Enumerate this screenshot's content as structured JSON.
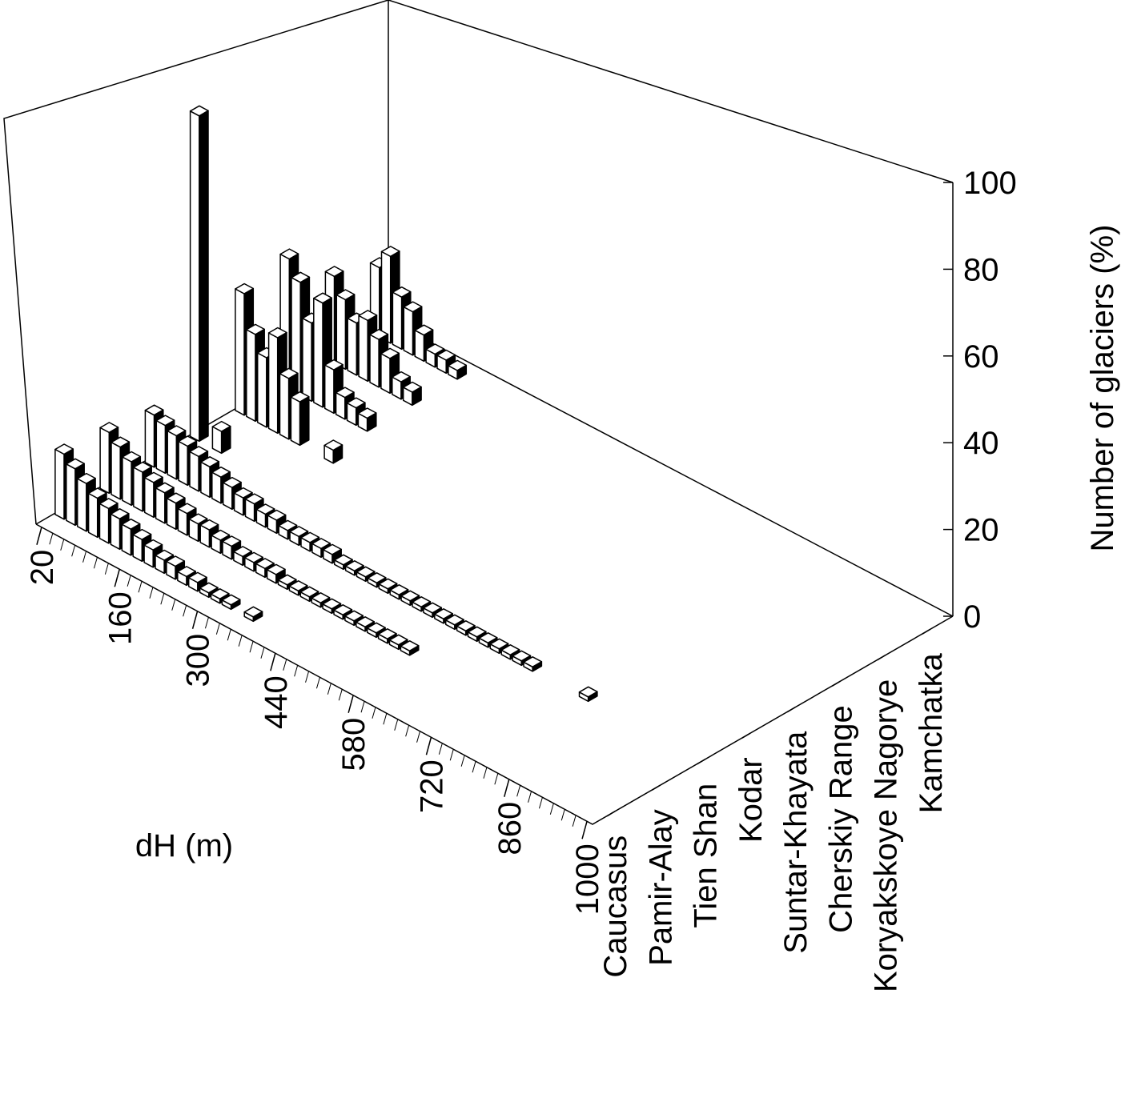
{
  "chart_data": {
    "type": "bar3d",
    "xlabel": "dH (m)",
    "zlabel": "Number of glaciers (%)",
    "x": [
      20,
      40,
      60,
      80,
      100,
      120,
      140,
      160,
      180,
      200,
      220,
      240,
      260,
      280,
      300,
      320,
      340,
      360,
      380,
      400,
      420,
      440,
      460,
      480,
      500,
      520,
      540,
      560,
      580,
      600,
      620,
      640,
      660,
      680,
      700,
      720,
      740,
      760,
      780,
      800,
      820,
      840,
      860,
      880,
      900,
      920,
      940,
      960,
      980,
      1000
    ],
    "xlim": [
      10,
      1010
    ],
    "xticks": [
      20,
      160,
      300,
      440,
      580,
      720,
      860,
      1000
    ],
    "zlim": [
      0,
      100
    ],
    "zticks": [
      0,
      20,
      40,
      60,
      80,
      100
    ],
    "color": "#ffffff",
    "side_color": "#000000",
    "series": [
      {
        "name": "Caucasus",
        "values": [
          15,
          13,
          11,
          9,
          8,
          7,
          6,
          5,
          4,
          3,
          3,
          2,
          2,
          1,
          1,
          1,
          0,
          1,
          0,
          0,
          0,
          0,
          0,
          0,
          0,
          0,
          0,
          0,
          0,
          0,
          0,
          0,
          0,
          0,
          0,
          0,
          0,
          0,
          0,
          0,
          0,
          0,
          0,
          0,
          0,
          0,
          0,
          0,
          0,
          0
        ]
      },
      {
        "name": "Pamir-Alay",
        "values": [
          14,
          12,
          10,
          9,
          8,
          7,
          6,
          5,
          4,
          4,
          3,
          3,
          2,
          2,
          2,
          2,
          1,
          1,
          1,
          1,
          1,
          1,
          1,
          1,
          1,
          1,
          1,
          1,
          0,
          0,
          0,
          0,
          0,
          0,
          0,
          0,
          0,
          0,
          0,
          0,
          0,
          0,
          0,
          0,
          0,
          0,
          0,
          0,
          0,
          0
        ]
      },
      {
        "name": "Tien Shan",
        "values": [
          12,
          11,
          10,
          9,
          8,
          7,
          6,
          5,
          4,
          4,
          3,
          3,
          2,
          2,
          2,
          2,
          2,
          1,
          1,
          1,
          1,
          1,
          1,
          1,
          1,
          1,
          1,
          1,
          1,
          1,
          1,
          1,
          1,
          1,
          1,
          0,
          0,
          0,
          0,
          1,
          0,
          0,
          0,
          0,
          0,
          0,
          0,
          0,
          0,
          0
        ]
      },
      {
        "name": "Kodar",
        "values": [
          75,
          0,
          5,
          0,
          0,
          0,
          0,
          0,
          0,
          0,
          0,
          0,
          0,
          0,
          0,
          0,
          0,
          0,
          0,
          0,
          0,
          0,
          0,
          0,
          0,
          0,
          0,
          0,
          0,
          0,
          0,
          0,
          0,
          0,
          0,
          0,
          0,
          0,
          0,
          0,
          0,
          0,
          0,
          0,
          0,
          0,
          0,
          0,
          0,
          0
        ]
      },
      {
        "name": "Suntar-Khayata",
        "values": [
          28,
          20,
          16,
          22,
          14,
          10,
          0,
          0,
          3,
          0,
          0,
          0,
          0,
          0,
          0,
          0,
          0,
          0,
          0,
          0,
          0,
          0,
          0,
          0,
          0,
          0,
          0,
          0,
          0,
          0,
          0,
          0,
          0,
          0,
          0,
          0,
          0,
          0,
          0,
          0,
          0,
          0,
          0,
          0,
          0,
          0,
          0,
          0,
          0,
          0
        ]
      },
      {
        "name": "Cherskiy Range",
        "values": [
          30,
          26,
          18,
          24,
          10,
          5,
          4,
          3,
          0,
          0,
          0,
          0,
          0,
          0,
          0,
          0,
          0,
          0,
          0,
          0,
          0,
          0,
          0,
          0,
          0,
          0,
          0,
          0,
          0,
          0,
          0,
          0,
          0,
          0,
          0,
          0,
          0,
          0,
          0,
          0,
          0,
          0,
          0,
          0,
          0,
          0,
          0,
          0,
          0,
          0
        ]
      },
      {
        "name": "Koryakskoye Nagorye",
        "values": [
          20,
          16,
          12,
          14,
          11,
          8,
          4,
          3,
          0,
          0,
          0,
          0,
          0,
          0,
          0,
          0,
          0,
          0,
          0,
          0,
          0,
          0,
          0,
          0,
          0,
          0,
          0,
          0,
          0,
          0,
          0,
          0,
          0,
          0,
          0,
          0,
          0,
          0,
          0,
          0,
          0,
          0,
          0,
          0,
          0,
          0,
          0,
          0,
          0,
          0
        ]
      },
      {
        "name": "Kamchatka",
        "values": [
          16,
          20,
          12,
          10,
          6,
          3,
          3,
          2,
          0,
          0,
          0,
          0,
          0,
          0,
          0,
          0,
          0,
          0,
          0,
          0,
          0,
          0,
          0,
          0,
          0,
          0,
          0,
          0,
          0,
          0,
          0,
          0,
          0,
          0,
          0,
          0,
          0,
          0,
          0,
          0,
          0,
          0,
          0,
          0,
          0,
          0,
          0,
          0,
          0,
          0
        ]
      }
    ]
  }
}
